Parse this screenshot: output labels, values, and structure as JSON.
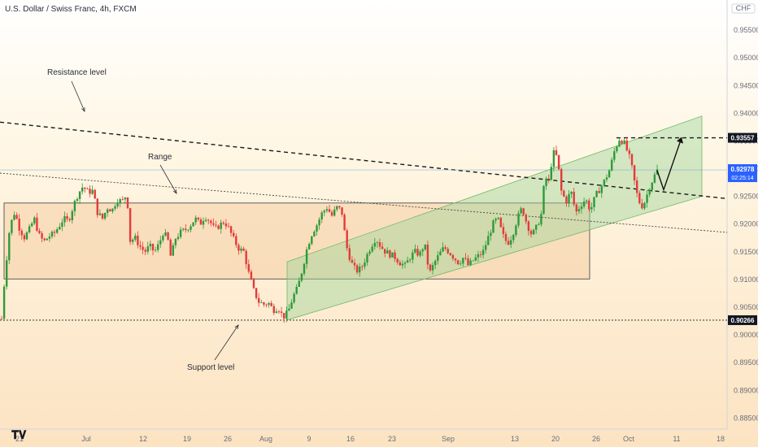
{
  "header": {
    "title": "U.S. Dollar / Swiss Franc, 4h, FXCM",
    "currency": "CHF"
  },
  "colors": {
    "up": "#26a69a",
    "down": "#ef5350",
    "bull_candle": "#2e9a3a",
    "bear_candle": "#e23b3b",
    "channel_fill": "#9ed49a",
    "range_fill": "#f5c89a",
    "price_marker": "#2962ff",
    "axis_text": "#6a6d78"
  },
  "chart_data": {
    "type": "candlestick",
    "symbol": "USDCHF",
    "interval": "4h",
    "broker": "FXCM",
    "xlabels": [
      "21",
      "Jul",
      "12",
      "19",
      "26",
      "Aug",
      "9",
      "16",
      "23",
      "Sep",
      "13",
      "20",
      "26",
      "Oct",
      "11",
      "18"
    ],
    "y_ticks": [
      "0.95500",
      "0.95000",
      "0.94500",
      "0.94000",
      "0.93500",
      "0.93000",
      "0.92500",
      "0.92000",
      "0.91500",
      "0.91000",
      "0.90500",
      "0.90000",
      "0.89500",
      "0.89000",
      "0.88500"
    ],
    "ylim": [
      0.883,
      0.9578
    ],
    "current_price": "0.92978",
    "current_countdown": "02:25:14",
    "levels": [
      {
        "label": "0.93557",
        "value": 0.93557,
        "style": "dashed"
      },
      {
        "label": "0.90266",
        "value": 0.90266,
        "style": "dotted"
      }
    ],
    "annotations": [
      "Resistance level",
      "Range",
      "Support level"
    ],
    "range_box": {
      "top": 0.9238,
      "bottom": 0.9101
    },
    "ascending_channel": "0.9027 → 0.9395 upper, 0.9027 → 0.9250 lower",
    "price_path": [
      [
        0,
        0.899
      ],
      [
        6,
        0.9108
      ],
      [
        12,
        0.9195
      ],
      [
        18,
        0.9222
      ],
      [
        24,
        0.9192
      ],
      [
        30,
        0.9176
      ],
      [
        36,
        0.919
      ],
      [
        42,
        0.921
      ],
      [
        48,
        0.918
      ],
      [
        54,
        0.9168
      ],
      [
        60,
        0.9178
      ],
      [
        66,
        0.9182
      ],
      [
        72,
        0.9195
      ],
      [
        78,
        0.921
      ],
      [
        84,
        0.9205
      ],
      [
        90,
        0.9232
      ],
      [
        96,
        0.9255
      ],
      [
        102,
        0.9268
      ],
      [
        108,
        0.9258
      ],
      [
        114,
        0.926
      ],
      [
        120,
        0.922
      ],
      [
        126,
        0.921
      ],
      [
        132,
        0.923
      ],
      [
        138,
        0.9225
      ],
      [
        144,
        0.9245
      ],
      [
        150,
        0.924
      ],
      [
        156,
        0.9255
      ],
      [
        160,
        0.917
      ],
      [
        166,
        0.9175
      ],
      [
        172,
        0.916
      ],
      [
        178,
        0.915
      ],
      [
        184,
        0.916
      ],
      [
        190,
        0.915
      ],
      [
        196,
        0.9165
      ],
      [
        200,
        0.9185
      ],
      [
        206,
        0.9175
      ],
      [
        210,
        0.914
      ],
      [
        216,
        0.9175
      ],
      [
        222,
        0.9185
      ],
      [
        228,
        0.919
      ],
      [
        234,
        0.9198
      ],
      [
        240,
        0.921
      ],
      [
        246,
        0.92
      ],
      [
        252,
        0.9215
      ],
      [
        258,
        0.9205
      ],
      [
        264,
        0.919
      ],
      [
        270,
        0.9198
      ],
      [
        276,
        0.9205
      ],
      [
        282,
        0.919
      ],
      [
        288,
        0.917
      ],
      [
        294,
        0.9155
      ],
      [
        300,
        0.915
      ],
      [
        306,
        0.911
      ],
      [
        312,
        0.908
      ],
      [
        318,
        0.906
      ],
      [
        324,
        0.9055
      ],
      [
        330,
        0.9058
      ],
      [
        336,
        0.9045
      ],
      [
        342,
        0.905
      ],
      [
        348,
        0.9032
      ],
      [
        354,
        0.904
      ],
      [
        360,
        0.9068
      ],
      [
        366,
        0.9085
      ],
      [
        372,
        0.912
      ],
      [
        378,
        0.916
      ],
      [
        384,
        0.9185
      ],
      [
        390,
        0.92
      ],
      [
        396,
        0.922
      ],
      [
        402,
        0.923
      ],
      [
        408,
        0.9215
      ],
      [
        414,
        0.923
      ],
      [
        420,
        0.9225
      ],
      [
        426,
        0.916
      ],
      [
        432,
        0.913
      ],
      [
        438,
        0.9115
      ],
      [
        444,
        0.912
      ],
      [
        450,
        0.914
      ],
      [
        456,
        0.916
      ],
      [
        462,
        0.9175
      ],
      [
        468,
        0.916
      ],
      [
        474,
        0.915
      ],
      [
        480,
        0.9145
      ],
      [
        486,
        0.914
      ],
      [
        492,
        0.913
      ],
      [
        498,
        0.9125
      ],
      [
        504,
        0.914
      ],
      [
        510,
        0.915
      ],
      [
        516,
        0.9145
      ],
      [
        522,
        0.9165
      ],
      [
        528,
        0.911
      ],
      [
        534,
        0.913
      ],
      [
        540,
        0.9145
      ],
      [
        546,
        0.9158
      ],
      [
        552,
        0.915
      ],
      [
        558,
        0.914
      ],
      [
        564,
        0.913
      ],
      [
        570,
        0.914
      ],
      [
        576,
        0.9125
      ],
      [
        582,
        0.9135
      ],
      [
        588,
        0.9142
      ],
      [
        594,
        0.915
      ],
      [
        600,
        0.9175
      ],
      [
        606,
        0.92
      ],
      [
        612,
        0.921
      ],
      [
        618,
        0.918
      ],
      [
        624,
        0.9165
      ],
      [
        630,
        0.918
      ],
      [
        636,
        0.921
      ],
      [
        642,
        0.923
      ],
      [
        648,
        0.92
      ],
      [
        654,
        0.918
      ],
      [
        660,
        0.9195
      ],
      [
        666,
        0.922
      ],
      [
        670,
        0.929
      ],
      [
        674,
        0.927
      ],
      [
        678,
        0.931
      ],
      [
        682,
        0.9335
      ],
      [
        686,
        0.931
      ],
      [
        690,
        0.926
      ],
      [
        696,
        0.924
      ],
      [
        702,
        0.926
      ],
      [
        708,
        0.922
      ],
      [
        714,
        0.9235
      ],
      [
        720,
        0.9245
      ],
      [
        726,
        0.9225
      ],
      [
        732,
        0.925
      ],
      [
        738,
        0.9265
      ],
      [
        744,
        0.928
      ],
      [
        750,
        0.93
      ],
      [
        756,
        0.9335
      ],
      [
        762,
        0.9355
      ],
      [
        768,
        0.9345
      ],
      [
        774,
        0.932
      ],
      [
        778,
        0.9295
      ],
      [
        782,
        0.926
      ],
      [
        786,
        0.924
      ],
      [
        790,
        0.9232
      ],
      [
        794,
        0.9245
      ],
      [
        798,
        0.9265
      ],
      [
        804,
        0.9285
      ],
      [
        808,
        0.9297
      ]
    ],
    "projection": [
      [
        808,
        0.9297
      ],
      [
        816,
        0.9262
      ],
      [
        838,
        0.93557
      ]
    ]
  }
}
